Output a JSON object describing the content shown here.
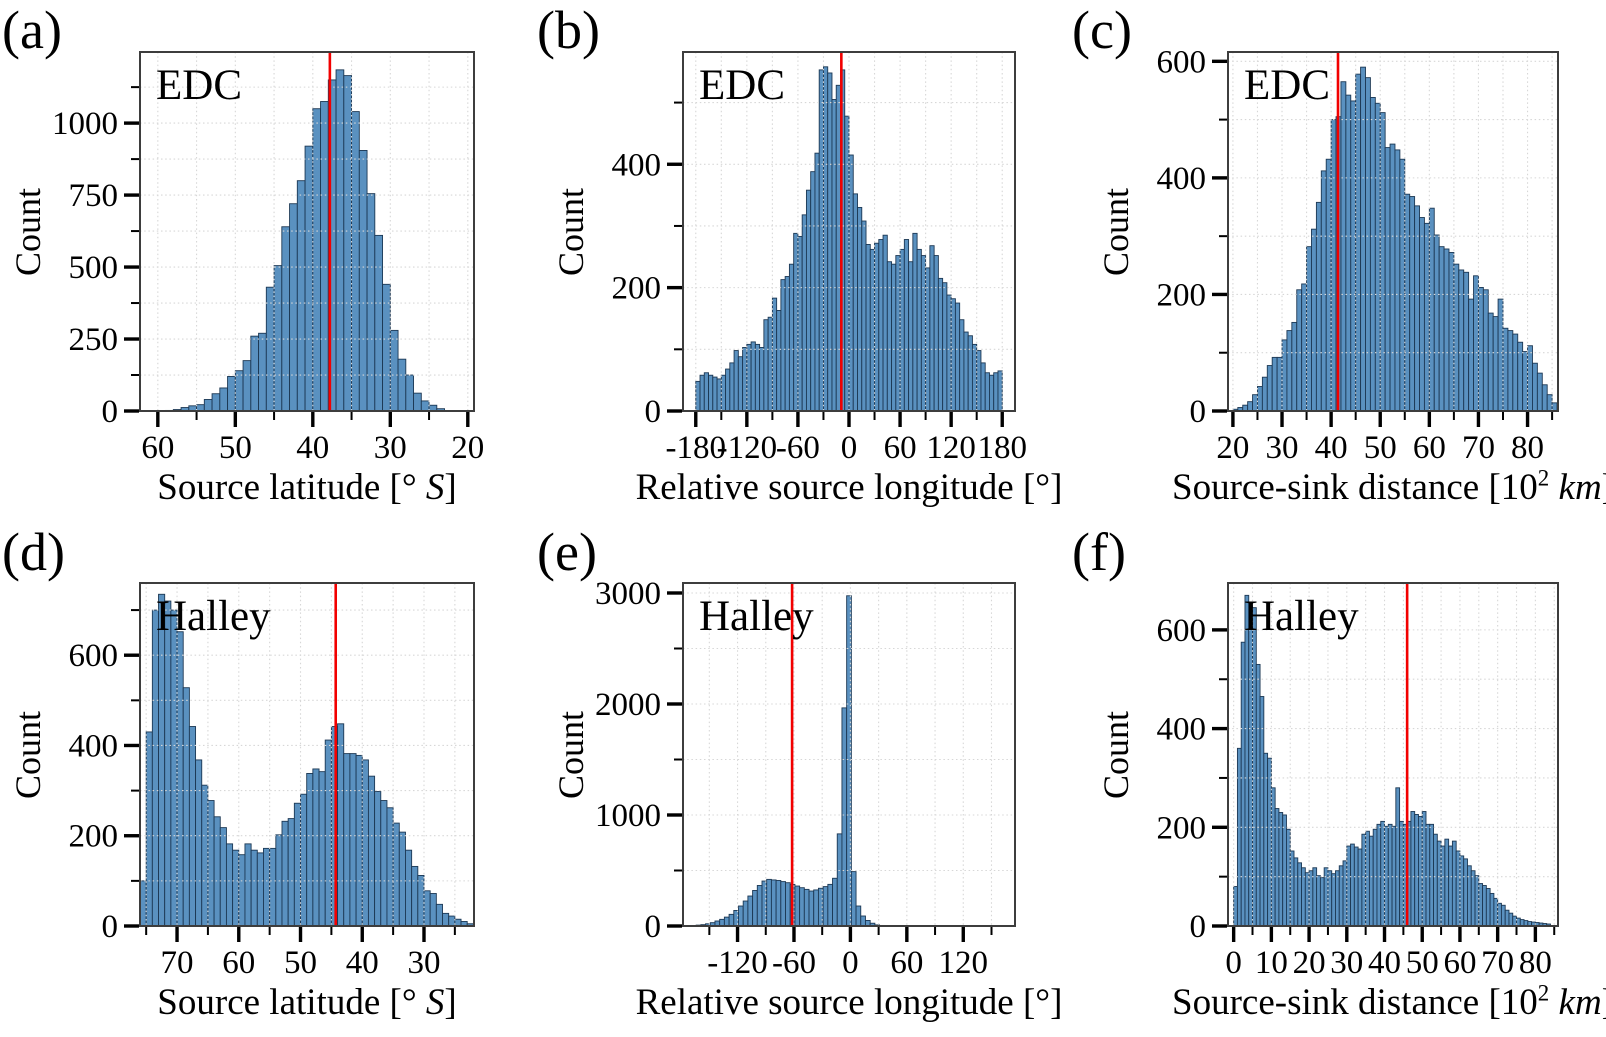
{
  "figure": {
    "background": "#ffffff",
    "bar_fill": "#5a91c0",
    "bar_edge": "#1c3854",
    "grid_color": "#d7d7d7",
    "frame_color": "#3d3d3d",
    "tick_color": "#000000",
    "median_line_color": "#f20000",
    "site_label_color": "#969696",
    "grid_style": "dotted",
    "legend": "none"
  },
  "chart_data": [
    {
      "type": "bar",
      "panel_label": "(a)",
      "site": "EDC",
      "ylabel": "Count",
      "xlabel_text": "Source latitude [° S]",
      "xlabel_segments": [
        {
          "t": "Source latitude [° "
        },
        {
          "t": "S",
          "italic": true
        },
        {
          "t": "]"
        }
      ],
      "xlim": [
        62.3,
        19.2
      ],
      "ylim": [
        0,
        1247
      ],
      "xtick_vals": [
        60,
        50,
        40,
        30,
        20
      ],
      "xtick_labels": [
        "60",
        "50",
        "40",
        "30",
        "20"
      ],
      "xminor_vals": [
        55,
        45,
        35,
        25
      ],
      "ytick_vals": [
        0,
        250,
        500,
        750,
        1000
      ],
      "ytick_labels": [
        "0",
        "250",
        "500",
        "750",
        "1000"
      ],
      "yminor_vals": [
        125,
        375,
        625,
        875,
        1125
      ],
      "red_line_x": 37.8,
      "bin_start": 59,
      "bin_step": -1,
      "values": [
        2,
        5,
        12,
        18,
        22,
        40,
        60,
        80,
        120,
        140,
        175,
        260,
        270,
        430,
        505,
        640,
        720,
        800,
        920,
        1050,
        1075,
        1150,
        1185,
        1165,
        1040,
        905,
        755,
        610,
        440,
        280,
        180,
        125,
        62,
        35,
        20,
        8
      ]
    },
    {
      "type": "bar",
      "panel_label": "(b)",
      "site": "EDC",
      "ylabel": "Count",
      "xlabel_text": "Relative source longitude [°]",
      "xlabel_segments": [
        {
          "t": "Relative source longitude [°]"
        }
      ],
      "xlim": [
        -195,
        195
      ],
      "ylim": [
        0,
        582
      ],
      "xtick_vals": [
        -180,
        -120,
        -60,
        0,
        60,
        120,
        180
      ],
      "xtick_labels": [
        "-180",
        "-120",
        "-60",
        "0",
        "60",
        "120",
        "180"
      ],
      "xminor_vals": [
        -150,
        -90,
        -30,
        30,
        90,
        150
      ],
      "ytick_vals": [
        0,
        200,
        400
      ],
      "ytick_labels": [
        "0",
        "200",
        "400"
      ],
      "yminor_vals": [
        100,
        300,
        500
      ],
      "red_line_x": -9,
      "bin_start": -180,
      "bin_step": 5,
      "values": [
        48,
        58,
        62,
        58,
        55,
        52,
        58,
        68,
        78,
        98,
        88,
        103,
        108,
        112,
        108,
        103,
        148,
        152,
        183,
        163,
        213,
        218,
        238,
        288,
        283,
        318,
        358,
        388,
        418,
        553,
        558,
        548,
        505,
        528,
        553,
        478,
        415,
        352,
        330,
        308,
        270,
        262,
        272,
        278,
        285,
        242,
        238,
        252,
        262,
        278,
        242,
        288,
        262,
        252,
        232,
        268,
        252,
        215,
        208,
        188,
        182,
        175,
        148,
        128,
        122,
        108,
        98,
        78,
        62,
        58,
        62,
        65
      ]
    },
    {
      "type": "bar",
      "panel_label": "(c)",
      "site": "EDC",
      "ylabel": "Count",
      "xlabel_text": "Source-sink distance [10² km]",
      "xlabel_segments": [
        {
          "t": "Source-sink distance [10"
        },
        {
          "t": "2",
          "sup": true
        },
        {
          "t": " "
        },
        {
          "t": "km",
          "italic": true
        },
        {
          "t": "]"
        }
      ],
      "xlim": [
        19,
        86.2
      ],
      "ylim": [
        0,
        616
      ],
      "xtick_vals": [
        20,
        30,
        40,
        50,
        60,
        70,
        80
      ],
      "xtick_labels": [
        "20",
        "30",
        "40",
        "50",
        "60",
        "70",
        "80"
      ],
      "xminor_vals": [
        25,
        35,
        45,
        55,
        65,
        75,
        85
      ],
      "ytick_vals": [
        0,
        200,
        400,
        600
      ],
      "ytick_labels": [
        "0",
        "200",
        "400",
        "600"
      ],
      "yminor_vals": [
        100,
        300,
        500
      ],
      "red_line_x": 41.4,
      "bin_start": 20,
      "bin_step": 1,
      "values": [
        3,
        6,
        10,
        16,
        28,
        42,
        58,
        78,
        92,
        92,
        122,
        138,
        152,
        208,
        218,
        282,
        312,
        358,
        412,
        432,
        500,
        505,
        565,
        542,
        532,
        578,
        590,
        572,
        538,
        528,
        512,
        452,
        458,
        448,
        432,
        372,
        368,
        352,
        332,
        322,
        348,
        302,
        282,
        278,
        272,
        252,
        242,
        238,
        192,
        232,
        212,
        208,
        168,
        162,
        192,
        142,
        138,
        132,
        118,
        102,
        112,
        82,
        65,
        45,
        28,
        14
      ]
    },
    {
      "type": "bar",
      "panel_label": "(d)",
      "site": "Halley",
      "ylabel": "Count",
      "xlabel_text": "Source latitude [° S]",
      "xlabel_segments": [
        {
          "t": "Source latitude [° "
        },
        {
          "t": "S",
          "italic": true
        },
        {
          "t": "]"
        }
      ],
      "xlim": [
        76,
        21.9
      ],
      "ylim": [
        0,
        760
      ],
      "xtick_vals": [
        70,
        60,
        50,
        40,
        30
      ],
      "xtick_labels": [
        "70",
        "60",
        "50",
        "40",
        "30"
      ],
      "xminor_vals": [
        75,
        65,
        55,
        45,
        35,
        25
      ],
      "ytick_vals": [
        0,
        200,
        400,
        600
      ],
      "ytick_labels": [
        "0",
        "200",
        "400",
        "600"
      ],
      "yminor_vals": [
        100,
        300,
        500,
        700
      ],
      "red_line_x": 44.3,
      "bin_start": 76,
      "bin_step": -1,
      "values": [
        100,
        430,
        700,
        735,
        720,
        700,
        652,
        528,
        442,
        368,
        312,
        278,
        242,
        218,
        182,
        168,
        158,
        182,
        168,
        162,
        172,
        172,
        202,
        232,
        238,
        272,
        292,
        338,
        348,
        342,
        412,
        442,
        448,
        382,
        382,
        378,
        368,
        332,
        298,
        278,
        262,
        228,
        208,
        168,
        132,
        112,
        78,
        72,
        48,
        28,
        22,
        15,
        10,
        5
      ]
    },
    {
      "type": "bar",
      "panel_label": "(e)",
      "site": "Halley",
      "ylabel": "Count",
      "xlabel_text": "Relative source longitude [°]",
      "xlabel_segments": [
        {
          "t": "Relative source longitude [°]"
        }
      ],
      "xlim": [
        -178,
        175
      ],
      "ylim": [
        0,
        3090
      ],
      "xtick_vals": [
        -120,
        -60,
        0,
        60,
        120
      ],
      "xtick_labels": [
        "-120",
        "-60",
        "0",
        "60",
        "120"
      ],
      "xminor_vals": [
        -150,
        -90,
        -30,
        30,
        90,
        150
      ],
      "ytick_vals": [
        0,
        1000,
        2000,
        3000
      ],
      "ytick_labels": [
        "0",
        "1000",
        "2000",
        "3000"
      ],
      "yminor_vals": [
        500,
        1500,
        2500
      ],
      "red_line_x": -62,
      "bin_start": -174,
      "bin_step": 5,
      "values": [
        3,
        5,
        8,
        12,
        20,
        30,
        45,
        60,
        80,
        105,
        140,
        180,
        225,
        270,
        320,
        365,
        405,
        420,
        415,
        410,
        400,
        390,
        375,
        360,
        345,
        330,
        315,
        325,
        340,
        355,
        375,
        430,
        830,
        1965,
        2975,
        490,
        180,
        90,
        50,
        25,
        10,
        5
      ]
    },
    {
      "type": "bar",
      "panel_label": "(f)",
      "site": "Halley",
      "ylabel": "Count",
      "xlabel_text": "Source-sink distance [10² km]",
      "xlabel_segments": [
        {
          "t": "Source-sink distance [10"
        },
        {
          "t": "2",
          "sup": true
        },
        {
          "t": " "
        },
        {
          "t": "km",
          "italic": true
        },
        {
          "t": "]"
        }
      ],
      "xlim": [
        -1.5,
        86
      ],
      "ylim": [
        0,
        695
      ],
      "xtick_vals": [
        0,
        10,
        20,
        30,
        40,
        50,
        60,
        70,
        80
      ],
      "xtick_labels": [
        "0",
        "10",
        "20",
        "30",
        "40",
        "50",
        "60",
        "70",
        "80"
      ],
      "xminor_vals": [
        5,
        15,
        25,
        35,
        45,
        55,
        65,
        75,
        85
      ],
      "ytick_vals": [
        0,
        200,
        400,
        600
      ],
      "ytick_labels": [
        "0",
        "200",
        "400",
        "600"
      ],
      "yminor_vals": [
        100,
        300,
        500
      ],
      "red_line_x": 46,
      "bin_start": 0,
      "bin_step": 1,
      "values": [
        80,
        360,
        575,
        670,
        655,
        645,
        530,
        465,
        350,
        340,
        280,
        238,
        230,
        225,
        196,
        152,
        138,
        128,
        118,
        108,
        112,
        118,
        102,
        98,
        118,
        112,
        106,
        112,
        122,
        132,
        162,
        166,
        160,
        156,
        186,
        192,
        182,
        196,
        206,
        212,
        202,
        206,
        202,
        280,
        212,
        206,
        212,
        232,
        226,
        222,
        232,
        206,
        206,
        186,
        172,
        162,
        176,
        162,
        172,
        152,
        142,
        136,
        122,
        112,
        102,
        86,
        82,
        76,
        66,
        56,
        46,
        42,
        32,
        26,
        20,
        16,
        13,
        11,
        9,
        8,
        7,
        6,
        5,
        4
      ]
    }
  ]
}
